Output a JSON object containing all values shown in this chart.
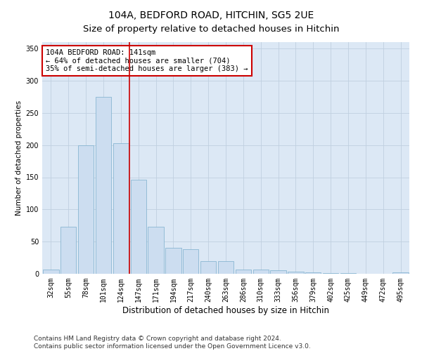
{
  "title": "104A, BEDFORD ROAD, HITCHIN, SG5 2UE",
  "subtitle": "Size of property relative to detached houses in Hitchin",
  "xlabel": "Distribution of detached houses by size in Hitchin",
  "ylabel": "Number of detached properties",
  "categories": [
    "32sqm",
    "55sqm",
    "78sqm",
    "101sqm",
    "124sqm",
    "147sqm",
    "171sqm",
    "194sqm",
    "217sqm",
    "240sqm",
    "263sqm",
    "286sqm",
    "310sqm",
    "333sqm",
    "356sqm",
    "379sqm",
    "402sqm",
    "425sqm",
    "449sqm",
    "472sqm",
    "495sqm"
  ],
  "values": [
    7,
    73,
    200,
    275,
    203,
    146,
    73,
    40,
    38,
    20,
    20,
    7,
    7,
    5,
    3,
    2,
    1,
    1,
    0,
    0,
    2
  ],
  "bar_color": "#ccddf0",
  "bar_edge_color": "#7aaecc",
  "highlight_line_color": "#cc0000",
  "annotation_line1": "104A BEDFORD ROAD: 141sqm",
  "annotation_line2": "← 64% of detached houses are smaller (704)",
  "annotation_line3": "35% of semi-detached houses are larger (383) →",
  "annotation_box_color": "#ffffff",
  "annotation_box_edge": "#cc0000",
  "ylim": [
    0,
    360
  ],
  "yticks": [
    0,
    50,
    100,
    150,
    200,
    250,
    300,
    350
  ],
  "grid_color": "#c0d0e0",
  "background_color": "#dce8f5",
  "footer_line1": "Contains HM Land Registry data © Crown copyright and database right 2024.",
  "footer_line2": "Contains public sector information licensed under the Open Government Licence v3.0.",
  "title_fontsize": 10,
  "xlabel_fontsize": 8.5,
  "ylabel_fontsize": 7.5,
  "tick_fontsize": 7,
  "annotation_fontsize": 7.5,
  "footer_fontsize": 6.5
}
